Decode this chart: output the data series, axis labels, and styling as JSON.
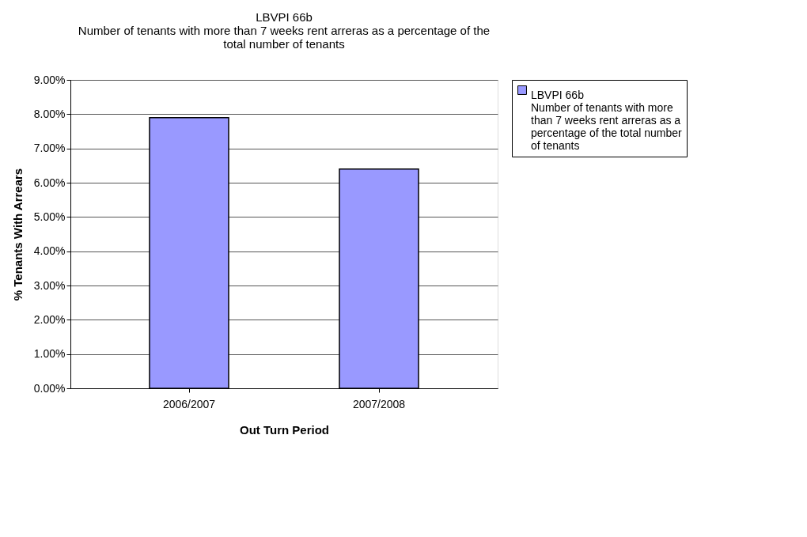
{
  "chart_data": {
    "type": "bar",
    "title": "LBVPI 66b\nNumber of tenants with more than 7 weeks rent arreras as a percentage of the\ntotal number of tenants",
    "xlabel": "Out Turn Period",
    "ylabel": "% Tenants With Arrears",
    "categories": [
      "2006/2007",
      "2007/2008"
    ],
    "series": [
      {
        "name": "LBVPI 66b\nNumber of tenants with more\nthan 7 weeks rent arreras as a\npercentage of the total number\nof tenants",
        "color": "#9999ff",
        "values": [
          7.9,
          6.4
        ]
      }
    ],
    "ylim": [
      0,
      9
    ],
    "yticks": [
      {
        "value": 0,
        "label": "0.00%"
      },
      {
        "value": 1,
        "label": "1.00%"
      },
      {
        "value": 2,
        "label": "2.00%"
      },
      {
        "value": 3,
        "label": "3.00%"
      },
      {
        "value": 4,
        "label": "4.00%"
      },
      {
        "value": 5,
        "label": "5.00%"
      },
      {
        "value": 6,
        "label": "6.00%"
      },
      {
        "value": 7,
        "label": "7.00%"
      },
      {
        "value": 8,
        "label": "8.00%"
      },
      {
        "value": 9,
        "label": "9.00%"
      }
    ],
    "grid": "y",
    "legend": "right"
  }
}
